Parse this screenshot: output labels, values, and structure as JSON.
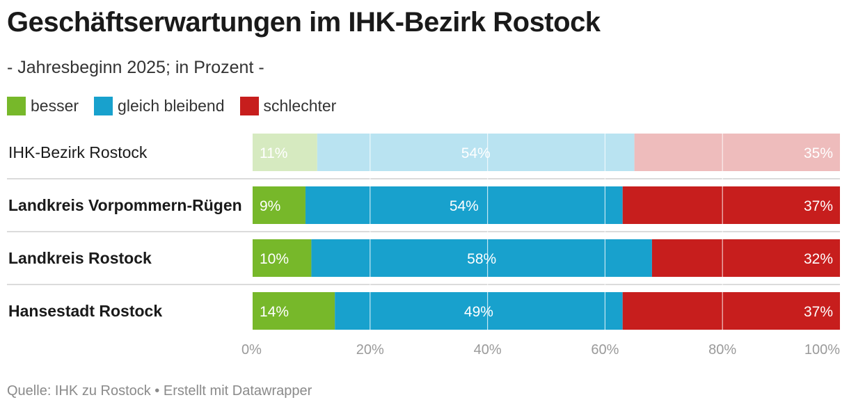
{
  "title": "Geschäftserwartungen im IHK-Bezirk Rostock",
  "subtitle": "- Jahresbeginn 2025; in Prozent -",
  "source": "Quelle: IHK zu Rostock • Erstellt mit Datawrapper",
  "chart_data": {
    "type": "bar",
    "orientation": "horizontal",
    "stacked": true,
    "categories": [
      "IHK-Bezirk Rostock",
      "Landkreis Vorpommern-Rügen",
      "Landkreis Rostock",
      "Hansestadt Rostock"
    ],
    "highlighted": [
      false,
      true,
      true,
      true
    ],
    "series": [
      {
        "name": "besser",
        "values": [
          11,
          9,
          10,
          14
        ],
        "color": "#77b82a",
        "muted_color": "#d6eac0"
      },
      {
        "name": "gleich bleibend",
        "values": [
          54,
          54,
          58,
          49
        ],
        "color": "#18a1cd",
        "muted_color": "#b9e3f1"
      },
      {
        "name": "schlechter",
        "values": [
          35,
          37,
          32,
          37
        ],
        "color": "#c71e1d",
        "muted_color": "#eebcbc"
      }
    ],
    "value_labels": [
      [
        "11%",
        "54%",
        "35%"
      ],
      [
        "9%",
        "54%",
        "37%"
      ],
      [
        "10%",
        "58%",
        "32%"
      ],
      [
        "14%",
        "49%",
        "37%"
      ]
    ],
    "xlim": [
      0,
      100
    ],
    "xticks": [
      0,
      20,
      40,
      60,
      80,
      100
    ],
    "xtick_labels": [
      "0%",
      "20%",
      "40%",
      "60%",
      "80%",
      "100%"
    ],
    "grid": true,
    "legend": "top-left"
  }
}
